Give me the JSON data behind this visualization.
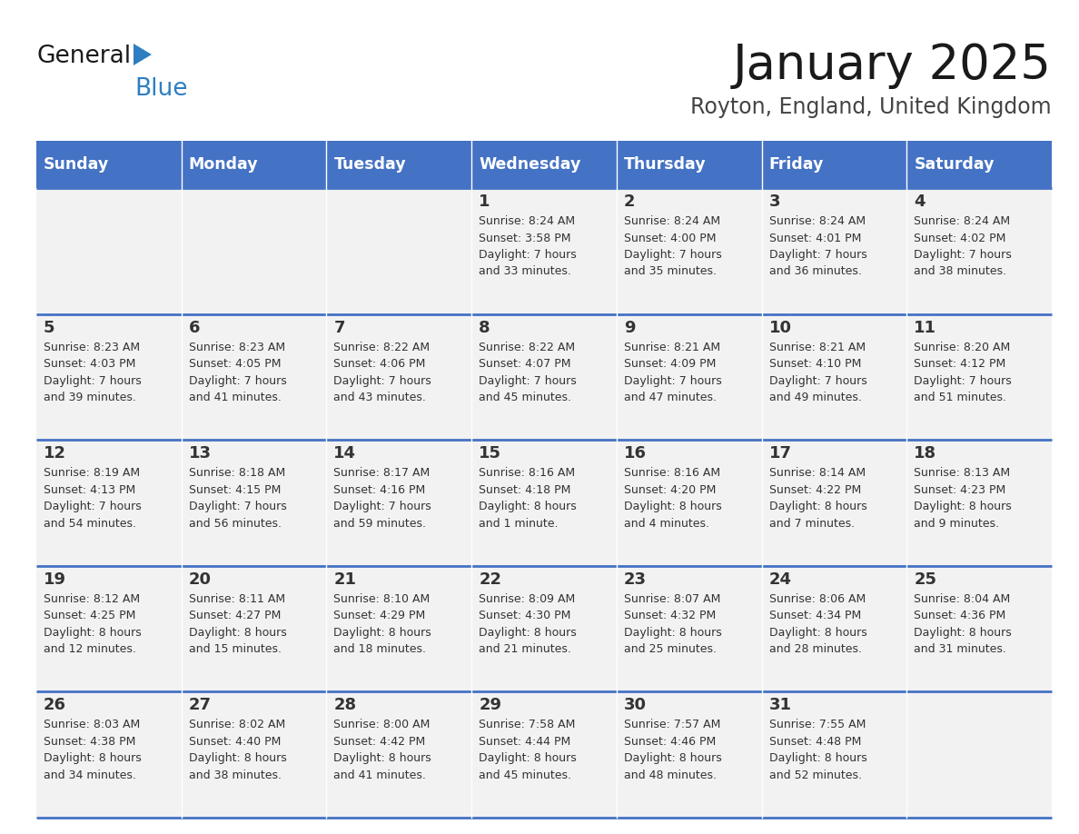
{
  "title": "January 2025",
  "subtitle": "Royton, England, United Kingdom",
  "days_of_week": [
    "Sunday",
    "Monday",
    "Tuesday",
    "Wednesday",
    "Thursday",
    "Friday",
    "Saturday"
  ],
  "header_bg": "#4472C4",
  "header_text": "#FFFFFF",
  "cell_bg": "#F2F2F2",
  "border_color": "#4472C4",
  "text_color": "#333333",
  "title_color": "#1a1a1a",
  "subtitle_color": "#444444",
  "logo_general_color": "#1a1a1a",
  "logo_blue_color": "#2E7EC1",
  "calendar_data": [
    [
      {
        "day": null,
        "sunrise": null,
        "sunset": null,
        "daylight_line1": null,
        "daylight_line2": null
      },
      {
        "day": null,
        "sunrise": null,
        "sunset": null,
        "daylight_line1": null,
        "daylight_line2": null
      },
      {
        "day": null,
        "sunrise": null,
        "sunset": null,
        "daylight_line1": null,
        "daylight_line2": null
      },
      {
        "day": "1",
        "sunrise": "Sunrise: 8:24 AM",
        "sunset": "Sunset: 3:58 PM",
        "daylight_line1": "Daylight: 7 hours",
        "daylight_line2": "and 33 minutes."
      },
      {
        "day": "2",
        "sunrise": "Sunrise: 8:24 AM",
        "sunset": "Sunset: 4:00 PM",
        "daylight_line1": "Daylight: 7 hours",
        "daylight_line2": "and 35 minutes."
      },
      {
        "day": "3",
        "sunrise": "Sunrise: 8:24 AM",
        "sunset": "Sunset: 4:01 PM",
        "daylight_line1": "Daylight: 7 hours",
        "daylight_line2": "and 36 minutes."
      },
      {
        "day": "4",
        "sunrise": "Sunrise: 8:24 AM",
        "sunset": "Sunset: 4:02 PM",
        "daylight_line1": "Daylight: 7 hours",
        "daylight_line2": "and 38 minutes."
      }
    ],
    [
      {
        "day": "5",
        "sunrise": "Sunrise: 8:23 AM",
        "sunset": "Sunset: 4:03 PM",
        "daylight_line1": "Daylight: 7 hours",
        "daylight_line2": "and 39 minutes."
      },
      {
        "day": "6",
        "sunrise": "Sunrise: 8:23 AM",
        "sunset": "Sunset: 4:05 PM",
        "daylight_line1": "Daylight: 7 hours",
        "daylight_line2": "and 41 minutes."
      },
      {
        "day": "7",
        "sunrise": "Sunrise: 8:22 AM",
        "sunset": "Sunset: 4:06 PM",
        "daylight_line1": "Daylight: 7 hours",
        "daylight_line2": "and 43 minutes."
      },
      {
        "day": "8",
        "sunrise": "Sunrise: 8:22 AM",
        "sunset": "Sunset: 4:07 PM",
        "daylight_line1": "Daylight: 7 hours",
        "daylight_line2": "and 45 minutes."
      },
      {
        "day": "9",
        "sunrise": "Sunrise: 8:21 AM",
        "sunset": "Sunset: 4:09 PM",
        "daylight_line1": "Daylight: 7 hours",
        "daylight_line2": "and 47 minutes."
      },
      {
        "day": "10",
        "sunrise": "Sunrise: 8:21 AM",
        "sunset": "Sunset: 4:10 PM",
        "daylight_line1": "Daylight: 7 hours",
        "daylight_line2": "and 49 minutes."
      },
      {
        "day": "11",
        "sunrise": "Sunrise: 8:20 AM",
        "sunset": "Sunset: 4:12 PM",
        "daylight_line1": "Daylight: 7 hours",
        "daylight_line2": "and 51 minutes."
      }
    ],
    [
      {
        "day": "12",
        "sunrise": "Sunrise: 8:19 AM",
        "sunset": "Sunset: 4:13 PM",
        "daylight_line1": "Daylight: 7 hours",
        "daylight_line2": "and 54 minutes."
      },
      {
        "day": "13",
        "sunrise": "Sunrise: 8:18 AM",
        "sunset": "Sunset: 4:15 PM",
        "daylight_line1": "Daylight: 7 hours",
        "daylight_line2": "and 56 minutes."
      },
      {
        "day": "14",
        "sunrise": "Sunrise: 8:17 AM",
        "sunset": "Sunset: 4:16 PM",
        "daylight_line1": "Daylight: 7 hours",
        "daylight_line2": "and 59 minutes."
      },
      {
        "day": "15",
        "sunrise": "Sunrise: 8:16 AM",
        "sunset": "Sunset: 4:18 PM",
        "daylight_line1": "Daylight: 8 hours",
        "daylight_line2": "and 1 minute."
      },
      {
        "day": "16",
        "sunrise": "Sunrise: 8:16 AM",
        "sunset": "Sunset: 4:20 PM",
        "daylight_line1": "Daylight: 8 hours",
        "daylight_line2": "and 4 minutes."
      },
      {
        "day": "17",
        "sunrise": "Sunrise: 8:14 AM",
        "sunset": "Sunset: 4:22 PM",
        "daylight_line1": "Daylight: 8 hours",
        "daylight_line2": "and 7 minutes."
      },
      {
        "day": "18",
        "sunrise": "Sunrise: 8:13 AM",
        "sunset": "Sunset: 4:23 PM",
        "daylight_line1": "Daylight: 8 hours",
        "daylight_line2": "and 9 minutes."
      }
    ],
    [
      {
        "day": "19",
        "sunrise": "Sunrise: 8:12 AM",
        "sunset": "Sunset: 4:25 PM",
        "daylight_line1": "Daylight: 8 hours",
        "daylight_line2": "and 12 minutes."
      },
      {
        "day": "20",
        "sunrise": "Sunrise: 8:11 AM",
        "sunset": "Sunset: 4:27 PM",
        "daylight_line1": "Daylight: 8 hours",
        "daylight_line2": "and 15 minutes."
      },
      {
        "day": "21",
        "sunrise": "Sunrise: 8:10 AM",
        "sunset": "Sunset: 4:29 PM",
        "daylight_line1": "Daylight: 8 hours",
        "daylight_line2": "and 18 minutes."
      },
      {
        "day": "22",
        "sunrise": "Sunrise: 8:09 AM",
        "sunset": "Sunset: 4:30 PM",
        "daylight_line1": "Daylight: 8 hours",
        "daylight_line2": "and 21 minutes."
      },
      {
        "day": "23",
        "sunrise": "Sunrise: 8:07 AM",
        "sunset": "Sunset: 4:32 PM",
        "daylight_line1": "Daylight: 8 hours",
        "daylight_line2": "and 25 minutes."
      },
      {
        "day": "24",
        "sunrise": "Sunrise: 8:06 AM",
        "sunset": "Sunset: 4:34 PM",
        "daylight_line1": "Daylight: 8 hours",
        "daylight_line2": "and 28 minutes."
      },
      {
        "day": "25",
        "sunrise": "Sunrise: 8:04 AM",
        "sunset": "Sunset: 4:36 PM",
        "daylight_line1": "Daylight: 8 hours",
        "daylight_line2": "and 31 minutes."
      }
    ],
    [
      {
        "day": "26",
        "sunrise": "Sunrise: 8:03 AM",
        "sunset": "Sunset: 4:38 PM",
        "daylight_line1": "Daylight: 8 hours",
        "daylight_line2": "and 34 minutes."
      },
      {
        "day": "27",
        "sunrise": "Sunrise: 8:02 AM",
        "sunset": "Sunset: 4:40 PM",
        "daylight_line1": "Daylight: 8 hours",
        "daylight_line2": "and 38 minutes."
      },
      {
        "day": "28",
        "sunrise": "Sunrise: 8:00 AM",
        "sunset": "Sunset: 4:42 PM",
        "daylight_line1": "Daylight: 8 hours",
        "daylight_line2": "and 41 minutes."
      },
      {
        "day": "29",
        "sunrise": "Sunrise: 7:58 AM",
        "sunset": "Sunset: 4:44 PM",
        "daylight_line1": "Daylight: 8 hours",
        "daylight_line2": "and 45 minutes."
      },
      {
        "day": "30",
        "sunrise": "Sunrise: 7:57 AM",
        "sunset": "Sunset: 4:46 PM",
        "daylight_line1": "Daylight: 8 hours",
        "daylight_line2": "and 48 minutes."
      },
      {
        "day": "31",
        "sunrise": "Sunrise: 7:55 AM",
        "sunset": "Sunset: 4:48 PM",
        "daylight_line1": "Daylight: 8 hours",
        "daylight_line2": "and 52 minutes."
      },
      {
        "day": null,
        "sunrise": null,
        "sunset": null,
        "daylight_line1": null,
        "daylight_line2": null
      }
    ]
  ]
}
